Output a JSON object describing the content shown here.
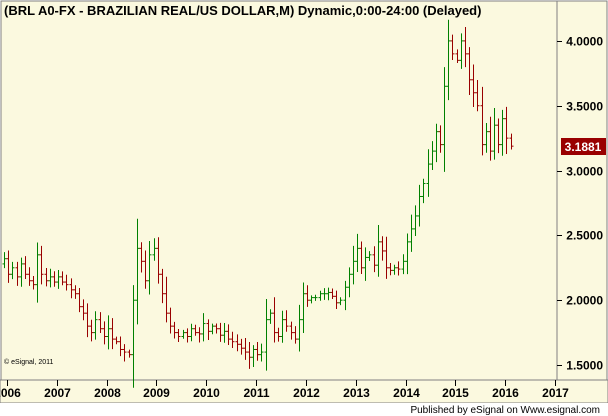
{
  "chart_data": {
    "type": "ohlc",
    "title": "(BRL A0-FX - BRAZILIAN REAL/US DOLLAR,M) Dynamic,0:00-24:00 (Delayed)",
    "credit": "© eSignal, 2011",
    "footer": "Published by eSignal on Www.esignal.com",
    "ylim": [
      1.4,
      4.3
    ],
    "y_ticks": [
      "1.5000",
      "2.0000",
      "2.5000",
      "3.0000",
      "3.5000",
      "4.0000"
    ],
    "x_ticks": [
      "2006",
      "2007",
      "2008",
      "2009",
      "2010",
      "2011",
      "2012",
      "2013",
      "2014",
      "2015",
      "2016",
      "2017"
    ],
    "last_value": "3.1881",
    "grid": false,
    "colors": {
      "background": "#fbf9df",
      "up": "#008000",
      "down": "#990000",
      "last_value_box": "#990000"
    },
    "closes": [
      2.32,
      2.2,
      2.25,
      2.18,
      2.28,
      2.2,
      2.15,
      2.12,
      2.35,
      2.2,
      2.15,
      2.18,
      2.14,
      2.18,
      2.14,
      2.12,
      2.08,
      2.05,
      1.95,
      1.9,
      1.8,
      1.75,
      1.85,
      1.78,
      1.72,
      1.78,
      1.7,
      1.68,
      1.62,
      1.6,
      1.58,
      2.0,
      2.4,
      2.3,
      2.15,
      2.35,
      2.4,
      2.2,
      2.05,
      1.9,
      1.8,
      1.75,
      1.72,
      1.75,
      1.72,
      1.78,
      1.75,
      1.74,
      1.82,
      1.76,
      1.8,
      1.78,
      1.73,
      1.76,
      1.7,
      1.68,
      1.66,
      1.63,
      1.6,
      1.56,
      1.62,
      1.58,
      1.6,
      1.85,
      1.9,
      1.75,
      1.72,
      1.85,
      1.8,
      1.75,
      1.7,
      1.85,
      2.05,
      2.0,
      2.02,
      2.02,
      2.05,
      2.05,
      2.06,
      2.03,
      1.98,
      2.0,
      2.1,
      2.2,
      2.3,
      2.4,
      2.25,
      2.33,
      2.35,
      2.27,
      2.45,
      2.38,
      2.25,
      2.23,
      2.25,
      2.24,
      2.3,
      2.45,
      2.55,
      2.65,
      2.8,
      2.9,
      3.05,
      3.15,
      3.3,
      3.2,
      3.65,
      4.0,
      3.9,
      3.85,
      4.0,
      3.9,
      3.7,
      3.6,
      3.5,
      3.2,
      3.3,
      3.15,
      3.35,
      3.2,
      3.4,
      3.25,
      3.1881
    ],
    "years": [
      2006,
      2007,
      2008,
      2009,
      2010,
      2011,
      2012,
      2013,
      2014,
      2015,
      2016,
      2017
    ],
    "x_start": 2005.9
  }
}
